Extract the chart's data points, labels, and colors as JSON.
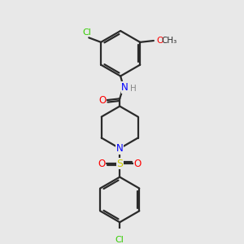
{
  "background_color": "#e8e8e8",
  "bond_color": "#2a2a2a",
  "atom_colors": {
    "Cl": "#33cc00",
    "N": "#0000ff",
    "O": "#ff0000",
    "S": "#cccc00",
    "C": "#2a2a2a",
    "H": "#888888"
  },
  "figsize": [
    3.0,
    3.0
  ],
  "dpi": 100,
  "lw": 1.6,
  "ring_r": 28,
  "pip_r": 28
}
